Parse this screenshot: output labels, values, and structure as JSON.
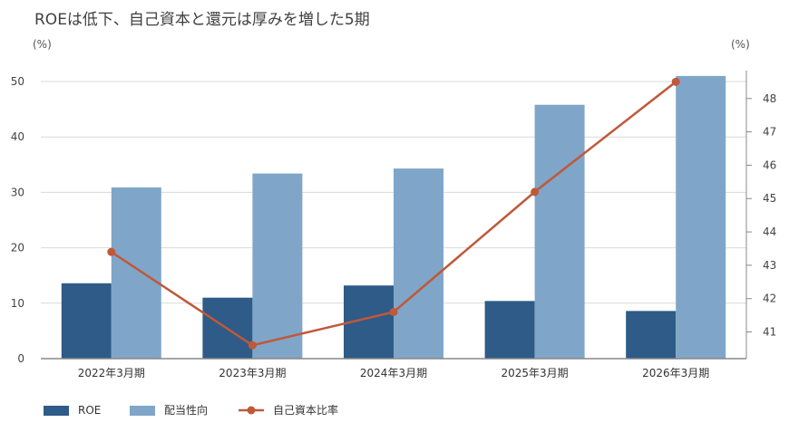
{
  "chart_data": {
    "type": "bar",
    "title": "ROEは低下、自己資本と還元は厚みを増した5期",
    "categories": [
      "2022年3月期",
      "2023年3月期",
      "2024年3月期",
      "2025年3月期",
      "2026年3月期"
    ],
    "series": [
      {
        "name": "ROE",
        "type": "bar",
        "axis": "left",
        "color": "#2e5b87",
        "values": [
          13.6,
          11.0,
          13.2,
          10.4,
          8.6
        ]
      },
      {
        "name": "配当性向",
        "type": "bar",
        "axis": "left",
        "color": "#7fa6c8",
        "values": [
          30.9,
          33.4,
          34.3,
          45.8,
          51.0
        ]
      },
      {
        "name": "自己資本比率",
        "type": "line",
        "axis": "right",
        "color": "#c0583a",
        "values": [
          43.4,
          40.6,
          41.6,
          45.2,
          48.5
        ]
      }
    ],
    "left_axis": {
      "unit": "(%)",
      "min": 0,
      "max": 50,
      "ticks": [
        0,
        10,
        20,
        30,
        40,
        50
      ]
    },
    "right_axis": {
      "unit": "(%)",
      "min": 40.2,
      "max": 48.7,
      "ticks": [
        41,
        42,
        43,
        44,
        45,
        46,
        47,
        48
      ]
    },
    "grid": true,
    "legend_position": "bottom-left"
  }
}
